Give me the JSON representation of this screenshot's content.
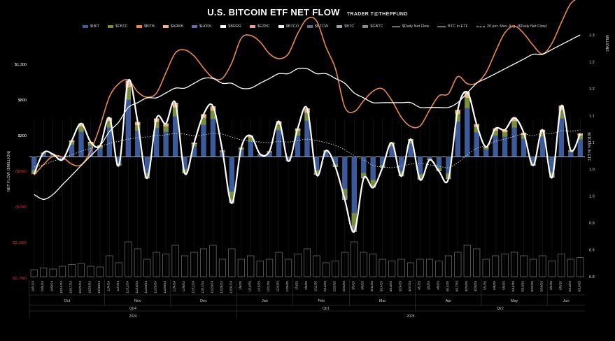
{
  "chart_data": {
    "type": "bar",
    "title": "U.S. BITCOIN ETF NET FLOW",
    "subtitle": "TRADER T@THEPFUND",
    "ylabel_left": "NET FLOW ($MILLION)",
    "ylabel_right": "BITCOIN IN ETF",
    "ylabel_right_unit": "MILLIONS",
    "left_ticks": [
      "$1,300",
      "$800",
      "$300",
      "($200)",
      "($700)",
      "($1,200)",
      "($1,700)"
    ],
    "left_tick_values": [
      1300,
      800,
      300,
      -200,
      -700,
      -1200,
      -1700
    ],
    "left_tick_colors": [
      "#ffffff",
      "#ffffff",
      "#ffffff",
      "#e03030",
      "#e03030",
      "#e03030",
      "#e03030"
    ],
    "right_ticks": [
      "1.3",
      "1.2",
      "1.2",
      "1.1",
      "1.1",
      "1.0",
      "1.0",
      "0.9",
      "0.9",
      "0.8"
    ],
    "ylim_left": [
      -1700,
      1300
    ],
    "legend": [
      "$IBIT",
      "$FBTC",
      "$BITB",
      "$ARKB",
      "$HODL",
      "$BRRR",
      "$EZBC",
      "$BTCO",
      "$BTCW",
      "$BTC",
      "$GBTC",
      "$Daily Net Flow",
      "BTC in ETF",
      "20 per. Mov. Avg. ($Daily Net Flow)"
    ],
    "series_colors": [
      "#3b5b9a",
      "#7a8f3a",
      "#e8894a",
      "#f2b07a",
      "#6a6aaa",
      "#ffffff",
      "#e8a090",
      "#f0f0f0",
      "#6a6a8a",
      "#9aa0a8",
      "#888888",
      "#ffffff",
      "#ffffff",
      "#ffffff"
    ],
    "months": [
      "Oct",
      "Nov",
      "Dec",
      "Jan",
      "Feb",
      "Mar",
      "Apr",
      "May",
      "Jun"
    ],
    "quarters": [
      "Qtr4",
      "Qtr1",
      "Qtr2"
    ],
    "years": [
      "2024",
      "2025"
    ],
    "dates": [
      "10/1/24",
      "10/4/24",
      "10/9/24",
      "10/14/24",
      "10/17/24",
      "10/22/24",
      "10/25/24",
      "10/30/24",
      "11/4/24",
      "11/7/24",
      "11/12/24",
      "11/15/24",
      "11/20/24",
      "11/25/24",
      "11/29/24",
      "12/4/24",
      "12/9/24",
      "12/12/24",
      "12/17/24",
      "12/20/24",
      "12/26/24",
      "12/31/24",
      "1/6/25",
      "1/10/25",
      "1/15/25",
      "1/21/25",
      "1/24/25",
      "1/29/25",
      "2/3/25",
      "2/6/25",
      "2/11/25",
      "2/14/25",
      "2/20/25",
      "2/25/25",
      "3/3/25",
      "3/6/25",
      "3/11/25",
      "3/14/25",
      "3/19/25",
      "3/24/25",
      "3/27/25",
      "4/1/25",
      "4/4/25",
      "4/9/25",
      "4/14/25",
      "4/17/25",
      "4/23/25",
      "4/28/25",
      "5/1/25",
      "5/6/25",
      "5/9/25",
      "5/14/25",
      "5/19/25",
      "5/22/25",
      "5/28/25",
      "6/2/25",
      "6/5/25",
      "6/10/25",
      "6/13/25"
    ],
    "daily_net_flow": [
      -240,
      60,
      40,
      -40,
      230,
      470,
      210,
      160,
      550,
      -120,
      1070,
      490,
      -300,
      540,
      470,
      760,
      -230,
      200,
      600,
      710,
      90,
      -650,
      130,
      300,
      40,
      80,
      500,
      -60,
      400,
      680,
      -250,
      90,
      -140,
      -600,
      -1050,
      -300,
      -430,
      -150,
      200,
      -270,
      250,
      -320,
      -40,
      -200,
      -310,
      660,
      910,
      460,
      140,
      400,
      380,
      550,
      340,
      -120,
      380,
      -290,
      720,
      90,
      330
    ],
    "moving_avg": [
      -140,
      -110,
      -60,
      -20,
      30,
      80,
      120,
      150,
      190,
      220,
      250,
      270,
      280,
      300,
      310,
      330,
      320,
      300,
      310,
      330,
      320,
      280,
      240,
      220,
      210,
      200,
      220,
      210,
      230,
      250,
      230,
      200,
      160,
      100,
      20,
      -40,
      -120,
      -140,
      -150,
      -130,
      -100,
      -90,
      -110,
      -130,
      -150,
      -80,
      30,
      120,
      160,
      220,
      250,
      290,
      320,
      300,
      330,
      330,
      370,
      360,
      380
    ],
    "btc_in_etf": [
      0.97,
      0.96,
      0.97,
      0.99,
      1.01,
      1.03,
      1.05,
      1.07,
      1.1,
      1.12,
      1.15,
      1.16,
      1.17,
      1.17,
      1.18,
      1.19,
      1.19,
      1.2,
      1.21,
      1.21,
      1.2,
      1.2,
      1.19,
      1.19,
      1.2,
      1.21,
      1.22,
      1.22,
      1.23,
      1.23,
      1.22,
      1.22,
      1.21,
      1.2,
      1.18,
      1.17,
      1.16,
      1.16,
      1.16,
      1.16,
      1.16,
      1.15,
      1.15,
      1.15,
      1.15,
      1.16,
      1.18,
      1.2,
      1.21,
      1.22,
      1.23,
      1.24,
      1.25,
      1.26,
      1.26,
      1.27,
      1.28,
      1.29,
      1.3
    ],
    "volume": [
      200,
      250,
      220,
      300,
      350,
      380,
      300,
      280,
      600,
      400,
      1000,
      800,
      500,
      700,
      650,
      900,
      600,
      700,
      800,
      900,
      500,
      800,
      500,
      600,
      450,
      500,
      700,
      500,
      650,
      800,
      600,
      400,
      450,
      700,
      1000,
      700,
      650,
      500,
      450,
      500,
      400,
      500,
      500,
      450,
      600,
      700,
      900,
      800,
      500,
      600,
      650,
      700,
      600,
      500,
      600,
      450,
      650,
      500,
      550
    ]
  }
}
